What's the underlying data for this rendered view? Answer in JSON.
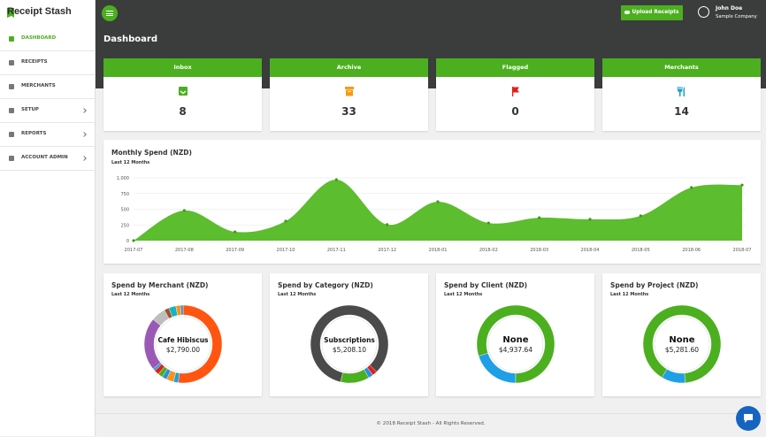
{
  "sidebar": {
    "brand": "Receipt Stash",
    "menu": [
      {
        "label": "DASHBOARD",
        "active": true,
        "submenu": false
      },
      {
        "label": "RECEIPTS",
        "active": false,
        "submenu": false
      },
      {
        "label": "MERCHANTS",
        "active": false,
        "submenu": false
      },
      {
        "label": "SETUP",
        "active": false,
        "submenu": true
      },
      {
        "label": "REPORTS",
        "active": false,
        "submenu": true
      },
      {
        "label": "ACCOUNT ADMIN",
        "active": false,
        "submenu": true
      }
    ]
  },
  "topbar": {
    "upload_button": "Upload Receipts",
    "user_name": "John Doe",
    "company": "Sample Company"
  },
  "page_title": "Dashboard",
  "stats": [
    {
      "title": "Inbox",
      "count": 8,
      "icon_color": "#4caf1f"
    },
    {
      "title": "Archive",
      "count": 33,
      "icon_color": "#f39c12"
    },
    {
      "title": "Flagged",
      "count": 0,
      "icon_color": "#e0201b"
    },
    {
      "title": "Merchants",
      "count": 14,
      "icon_color": "#1fa3c9"
    }
  ],
  "chart_data": [
    {
      "type": "area",
      "title": "Monthly Spend (NZD)",
      "subtitle": "Last 12 Months",
      "categories": [
        "2017-07",
        "2017-08",
        "2017-09",
        "2017-10",
        "2017-11",
        "2017-12",
        "2018-01",
        "2018-02",
        "2018-03",
        "2018-04",
        "2018-05",
        "2018-06",
        "2018-07"
      ],
      "values": [
        0,
        480,
        140,
        310,
        970,
        255,
        620,
        280,
        365,
        340,
        395,
        845,
        885
      ],
      "color": "#5cbd2e",
      "ylim": [
        0,
        1000
      ],
      "yticks": [
        0,
        250,
        500,
        750,
        {
          "value": 1000,
          "label": "1,000"
        }
      ],
      "grid": true
    },
    {
      "type": "pie",
      "title": "Spend by Merchant (NZD)",
      "subtitle": "Last 12 Months",
      "center_label": "Cafe Hibiscus",
      "center_value": "$2,790.00",
      "values": [
        52,
        2,
        3,
        2,
        2,
        2,
        1,
        22,
        6,
        2,
        3,
        2,
        1
      ],
      "colors": [
        "#ff5511",
        "#1e9fd6",
        "#f7931e",
        "#2a8fd8",
        "#4caf1f",
        "#e0201b",
        "#1e9fd6",
        "#9b59b6",
        "#bdbdbd",
        "#a0522d",
        "#17b3c4",
        "#f7931e",
        "#2a8fd8"
      ]
    },
    {
      "type": "pie",
      "title": "Spend by Category (NZD)",
      "subtitle": "Last 12 Months",
      "center_label": "Subscriptions",
      "center_value": "$5,208.10",
      "values": [
        12,
        84,
        2,
        2
      ],
      "colors": [
        "#4caf1f",
        "#4a4a4a",
        "#e0201b",
        "#2a8fd8"
      ]
    },
    {
      "type": "pie",
      "title": "Spend by Client (NZD)",
      "subtitle": "Last 12 Months",
      "center_label": "None",
      "center_value": "$4,937.64",
      "values": [
        20,
        80
      ],
      "colors": [
        "#1e9fe6",
        "#4caf1f"
      ]
    },
    {
      "type": "pie",
      "title": "Spend by Project (NZD)",
      "subtitle": "Last 12 Months",
      "center_label": "None",
      "center_value": "$5,281.60",
      "values": [
        10,
        90
      ],
      "colors": [
        "#1e9fe6",
        "#4caf1f"
      ]
    }
  ],
  "footer": "© 2018 Receipt Stash - All Rights Reserved."
}
